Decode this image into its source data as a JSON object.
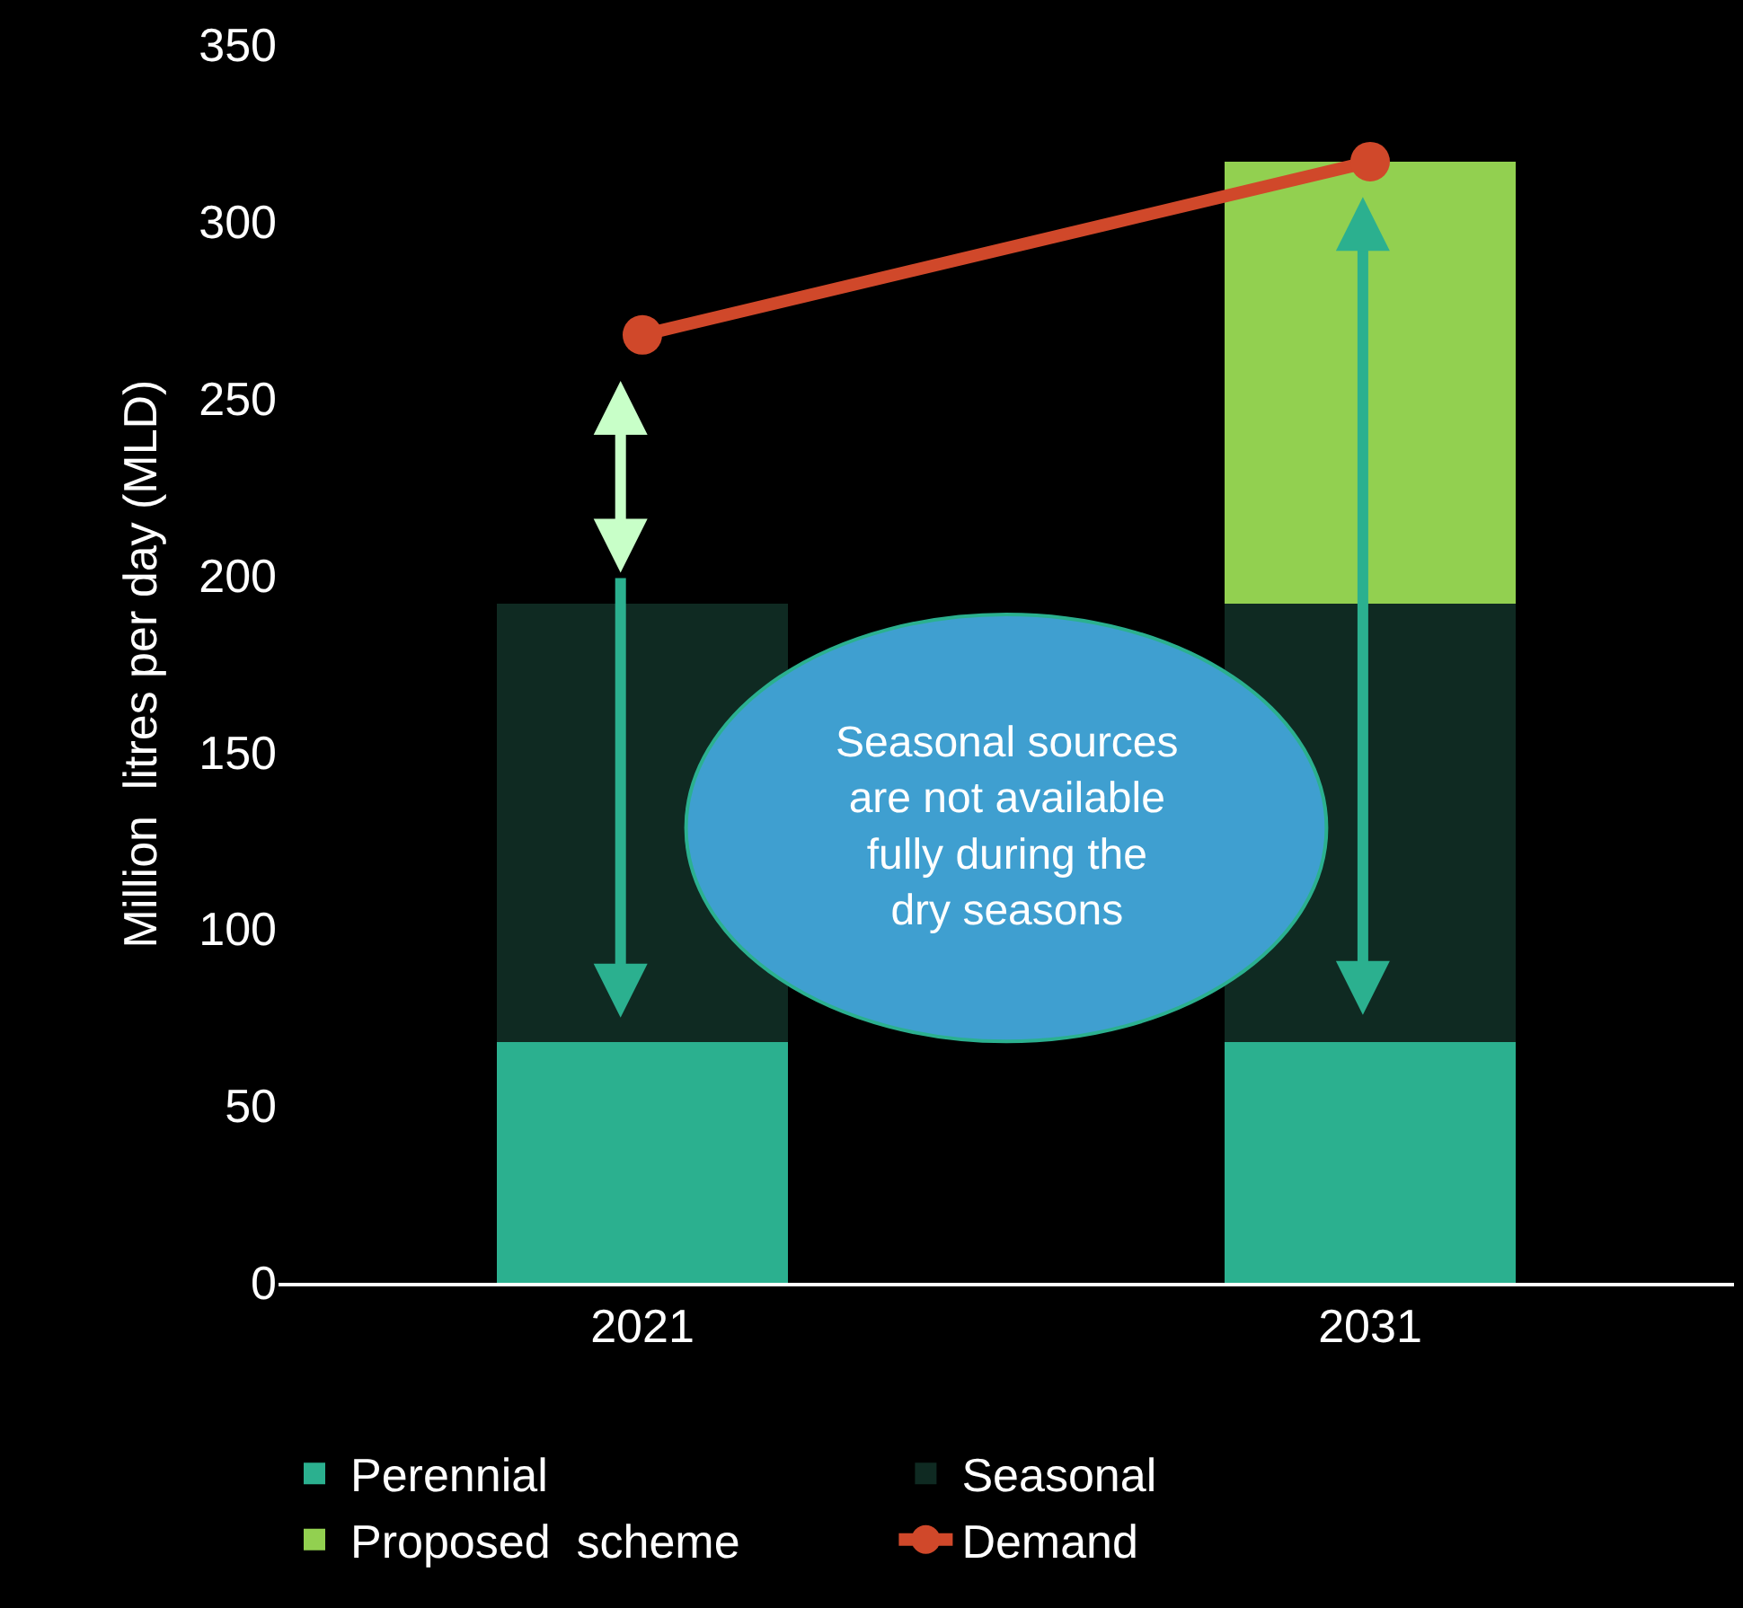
{
  "chart_data": {
    "type": "bar",
    "ylabel": "Million  litres per day (MLD)",
    "categories": [
      "2021",
      "2031"
    ],
    "stacked": true,
    "series": [
      {
        "name": "Perennial",
        "color": "#2bb08f",
        "values": [
          68,
          68
        ]
      },
      {
        "name": "Seasonal",
        "color": "#0f2a22",
        "values": [
          124,
          124
        ]
      },
      {
        "name": "Proposed  scheme",
        "color": "#92d050",
        "values": [
          null,
          125
        ]
      },
      {
        "name": "Demand",
        "type": "line",
        "color": "#d0482a",
        "values": [
          268,
          317
        ]
      }
    ],
    "ylim": [
      0,
      350
    ],
    "yticks": [
      0,
      50,
      100,
      150,
      200,
      250,
      300,
      350
    ],
    "grid": false,
    "legend": "bottom",
    "marker": "circle",
    "line_style": "solid",
    "annotations": [
      "Seasonal sources are not available fully during the dry seasons"
    ]
  }
}
